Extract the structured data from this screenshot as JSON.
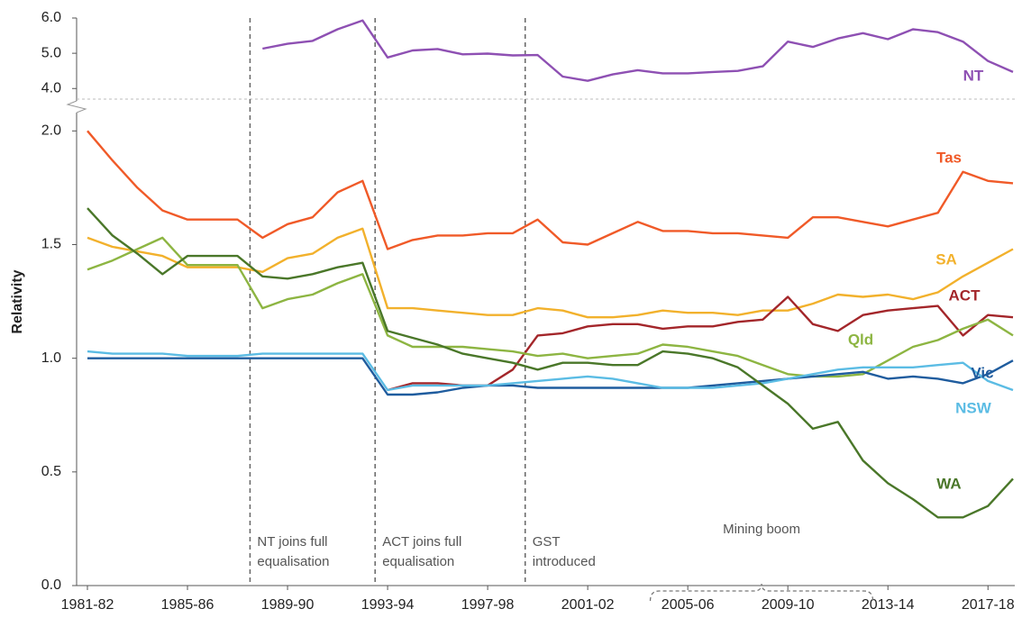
{
  "chart_data": {
    "type": "line",
    "y_label": "Relativity",
    "categories": [
      "1981-82",
      null,
      null,
      null,
      "1985-86",
      null,
      null,
      null,
      "1989-90",
      null,
      null,
      null,
      "1993-94",
      null,
      null,
      null,
      "1997-98",
      null,
      null,
      null,
      "2001-02",
      null,
      null,
      null,
      "2005-06",
      null,
      null,
      null,
      "2009-10",
      null,
      null,
      null,
      "2013-14",
      null,
      null,
      null,
      "2017-18",
      null
    ],
    "ylim": [
      0,
      2.14
    ],
    "yticks": [
      {
        "value": 0,
        "label": "0.0"
      },
      0.5,
      {
        "value": 1,
        "label": "1.0"
      },
      1.5,
      {
        "value": 2,
        "label": "2.0"
      }
    ],
    "y2lim": [
      3.7,
      6.0
    ],
    "y2ticks": [
      {
        "value": 4,
        "label": "4.0"
      },
      {
        "value": 5,
        "label": "5.0"
      },
      {
        "value": 6,
        "label": "6.0"
      }
    ],
    "series": [
      {
        "name": "NT",
        "color": "#8e50b3",
        "axis": "y2",
        "values": [
          null,
          null,
          null,
          null,
          null,
          null,
          null,
          5.13,
          5.27,
          5.35,
          5.68,
          5.93,
          4.88,
          5.08,
          5.12,
          4.97,
          4.99,
          4.94,
          4.95,
          4.34,
          4.22,
          4.4,
          4.52,
          4.43,
          4.43,
          4.47,
          4.5,
          4.63,
          5.33,
          5.18,
          5.42,
          5.57,
          5.4,
          5.68,
          5.6,
          5.33,
          4.78,
          4.47
        ]
      },
      {
        "name": "Tas",
        "color": "#f05a28",
        "values": [
          2.0,
          1.87,
          1.75,
          1.65,
          1.61,
          1.61,
          1.61,
          1.53,
          1.59,
          1.62,
          1.73,
          1.78,
          1.48,
          1.52,
          1.54,
          1.54,
          1.55,
          1.55,
          1.61,
          1.51,
          1.5,
          1.55,
          1.6,
          1.56,
          1.56,
          1.55,
          1.55,
          1.54,
          1.53,
          1.62,
          1.62,
          1.6,
          1.58,
          1.61,
          1.64,
          1.82,
          1.78,
          1.77
        ]
      },
      {
        "name": "SA",
        "color": "#f2b12c",
        "values": [
          1.53,
          1.49,
          1.47,
          1.45,
          1.4,
          1.4,
          1.4,
          1.38,
          1.44,
          1.46,
          1.53,
          1.57,
          1.22,
          1.22,
          1.21,
          1.2,
          1.19,
          1.19,
          1.22,
          1.21,
          1.18,
          1.18,
          1.19,
          1.21,
          1.2,
          1.2,
          1.19,
          1.21,
          1.21,
          1.24,
          1.28,
          1.27,
          1.28,
          1.26,
          1.29,
          1.36,
          1.42,
          1.48
        ]
      },
      {
        "name": "ACT",
        "color": "#a3262a",
        "values": [
          null,
          null,
          null,
          null,
          null,
          null,
          null,
          null,
          null,
          null,
          null,
          null,
          0.86,
          0.89,
          0.89,
          0.88,
          0.88,
          0.95,
          1.1,
          1.11,
          1.14,
          1.15,
          1.15,
          1.13,
          1.14,
          1.14,
          1.16,
          1.17,
          1.27,
          1.15,
          1.12,
          1.19,
          1.21,
          1.22,
          1.23,
          1.1,
          1.19,
          1.18
        ]
      },
      {
        "name": "Qld",
        "color": "#8db542",
        "values": [
          1.39,
          1.43,
          1.48,
          1.53,
          1.41,
          1.41,
          1.41,
          1.22,
          1.26,
          1.28,
          1.33,
          1.37,
          1.1,
          1.05,
          1.05,
          1.05,
          1.04,
          1.03,
          1.01,
          1.02,
          1.0,
          1.01,
          1.02,
          1.06,
          1.05,
          1.03,
          1.01,
          0.97,
          0.93,
          0.92,
          0.92,
          0.93,
          0.99,
          1.05,
          1.08,
          1.13,
          1.17,
          1.1
        ]
      },
      {
        "name": "Vic",
        "color": "#1f5c9e",
        "values": [
          1.0,
          1.0,
          1.0,
          1.0,
          1.0,
          1.0,
          1.0,
          1.0,
          1.0,
          1.0,
          1.0,
          1.0,
          0.84,
          0.84,
          0.85,
          0.87,
          0.88,
          0.88,
          0.87,
          0.87,
          0.87,
          0.87,
          0.87,
          0.87,
          0.87,
          0.88,
          0.89,
          0.9,
          0.91,
          0.92,
          0.93,
          0.94,
          0.91,
          0.92,
          0.91,
          0.89,
          0.93,
          0.99
        ]
      },
      {
        "name": "NSW",
        "color": "#5bbce4",
        "values": [
          1.03,
          1.02,
          1.02,
          1.02,
          1.01,
          1.01,
          1.01,
          1.02,
          1.02,
          1.02,
          1.02,
          1.02,
          0.86,
          0.88,
          0.88,
          0.88,
          0.88,
          0.89,
          0.9,
          0.91,
          0.92,
          0.91,
          0.89,
          0.87,
          0.87,
          0.87,
          0.88,
          0.89,
          0.91,
          0.93,
          0.95,
          0.96,
          0.96,
          0.96,
          0.97,
          0.98,
          0.9,
          0.86
        ]
      },
      {
        "name": "WA",
        "color": "#4a7729",
        "values": [
          1.66,
          1.54,
          1.46,
          1.37,
          1.45,
          1.45,
          1.45,
          1.36,
          1.35,
          1.37,
          1.4,
          1.42,
          1.12,
          1.09,
          1.06,
          1.02,
          1.0,
          0.98,
          0.95,
          0.98,
          0.98,
          0.97,
          0.97,
          1.03,
          1.02,
          1.0,
          0.96,
          0.88,
          0.8,
          0.69,
          0.72,
          0.55,
          0.45,
          0.38,
          0.3,
          0.3,
          0.35,
          0.47
        ]
      }
    ],
    "annotations": [
      {
        "x": 6.5,
        "lines": [
          "NT joins full",
          "equalisation"
        ]
      },
      {
        "x": 11.5,
        "lines": [
          "ACT joins full",
          "equalisation"
        ]
      },
      {
        "x": 17.5,
        "lines": [
          "GST",
          "introduced"
        ]
      }
    ],
    "bracket": {
      "from": 22.5,
      "to": 31.4,
      "text": "Mining boom"
    }
  }
}
